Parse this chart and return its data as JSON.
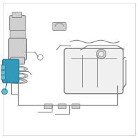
{
  "bg_color": "#ffffff",
  "line_color": "#808080",
  "highlight_blue": "#3399bb",
  "highlight_dark": "#1a7799",
  "highlight_light": "#66bbcc",
  "tank_fill": "#f0f0f0",
  "gray_fill": "#d0d0d0",
  "gray_dark": "#a0a0a0",
  "white": "#ffffff",
  "border": "#cccccc"
}
